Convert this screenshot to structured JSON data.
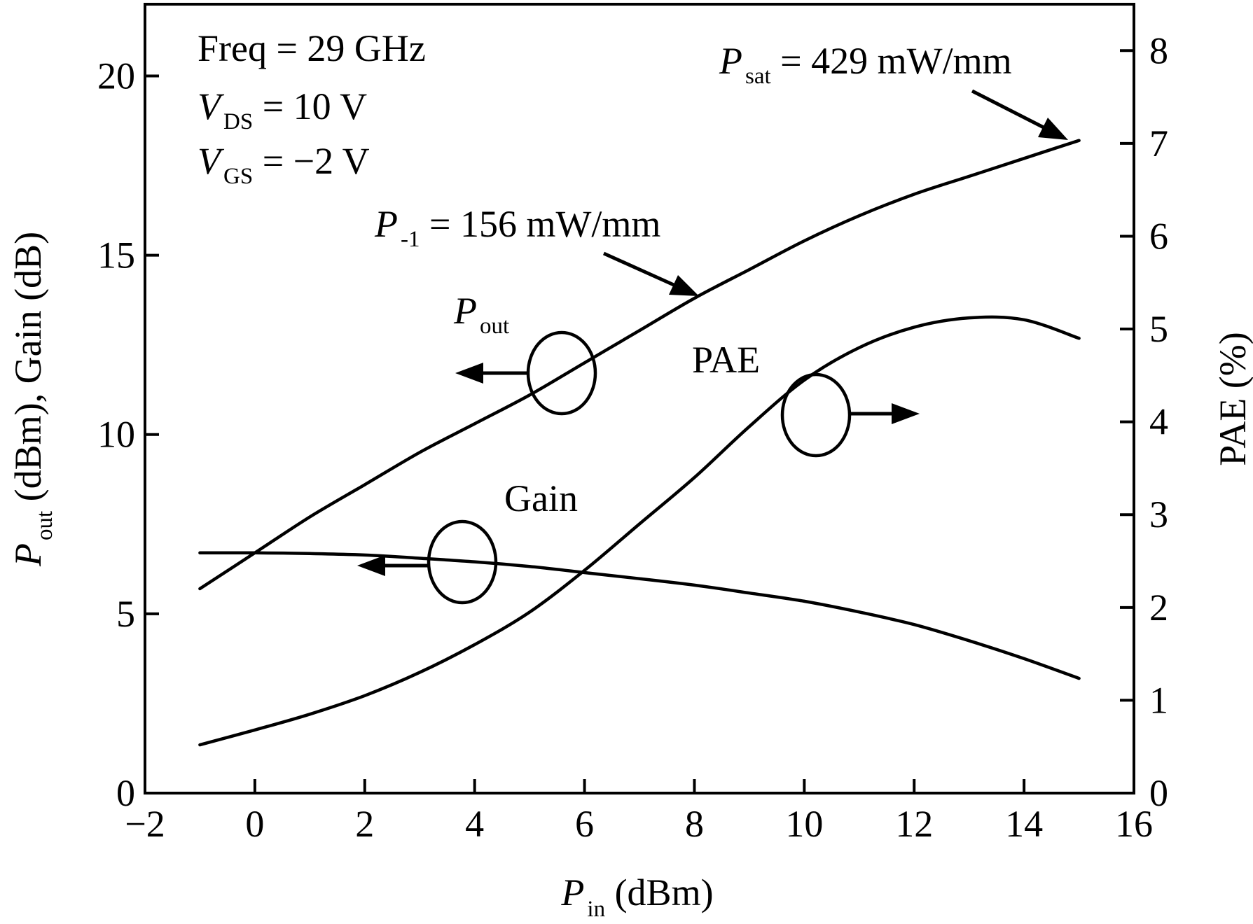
{
  "chart_data": {
    "type": "line",
    "x_axis": {
      "label_main": "P",
      "label_sub": "in",
      "label_rest": " (dBm)",
      "range": [
        -2,
        16
      ],
      "ticks": [
        -2,
        0,
        2,
        4,
        6,
        8,
        10,
        12,
        14,
        16
      ],
      "tick_labels": [
        "−2",
        "0",
        "2",
        "4",
        "6",
        "8",
        "10",
        "12",
        "14",
        "16"
      ]
    },
    "y_axis_left": {
      "label_main": "P",
      "label_sub": "out",
      "label_rest": " (dBm), Gain (dB)",
      "range": [
        0,
        22
      ],
      "ticks": [
        0,
        5,
        10,
        15,
        20
      ],
      "tick_labels": [
        "0",
        "5",
        "10",
        "15",
        "20"
      ]
    },
    "y_axis_right": {
      "label": "PAE (%)",
      "range": [
        0,
        8.5
      ],
      "ticks": [
        0,
        1,
        2,
        3,
        4,
        5,
        6,
        7,
        8
      ],
      "tick_labels": [
        "0",
        "1",
        "2",
        "3",
        "4",
        "5",
        "6",
        "7",
        "8"
      ]
    },
    "grid": false,
    "series": [
      {
        "name": "Pout",
        "axis": "left",
        "x": [
          -1,
          0,
          1,
          2,
          3,
          4,
          5,
          6,
          7,
          8,
          9,
          10,
          11,
          12,
          13,
          14,
          15
        ],
        "values": [
          5.7,
          6.7,
          7.7,
          8.6,
          9.5,
          10.3,
          11.1,
          12.0,
          12.9,
          13.8,
          14.6,
          15.4,
          16.1,
          16.7,
          17.2,
          17.7,
          18.2
        ]
      },
      {
        "name": "Gain",
        "axis": "left",
        "x": [
          -1,
          0,
          1,
          2,
          3,
          4,
          5,
          6,
          7,
          8,
          9,
          10,
          11,
          12,
          13,
          14,
          15
        ],
        "values": [
          6.7,
          6.7,
          6.68,
          6.64,
          6.55,
          6.45,
          6.32,
          6.15,
          5.98,
          5.8,
          5.58,
          5.35,
          5.05,
          4.7,
          4.25,
          3.75,
          3.2
        ]
      },
      {
        "name": "PAE",
        "axis": "right",
        "x": [
          -1,
          0,
          1,
          2,
          3,
          4,
          5,
          6,
          7,
          8,
          9,
          10,
          11,
          12,
          13,
          14,
          15
        ],
        "values": [
          0.52,
          0.68,
          0.85,
          1.05,
          1.3,
          1.6,
          1.95,
          2.4,
          2.9,
          3.4,
          3.95,
          4.45,
          4.8,
          5.02,
          5.12,
          5.1,
          4.9
        ]
      }
    ],
    "annotations": {
      "condition_freq": "Freq = 29 GHz",
      "condition_vds": {
        "main": "V",
        "sub": "DS",
        "rest": " = 10 V"
      },
      "condition_vgs": {
        "main": "V",
        "sub": "GS",
        "rest": " = −2 V"
      },
      "psat": {
        "main": "P",
        "sub": "sat",
        "rest": " = 429 mW/mm"
      },
      "p1db": {
        "main": "P",
        "sub": "-1",
        "rest": " = 156 mW/mm"
      },
      "pout_label": {
        "main": "P",
        "sub": "out"
      },
      "pae_label": "PAE",
      "gain_label": "Gain"
    }
  }
}
